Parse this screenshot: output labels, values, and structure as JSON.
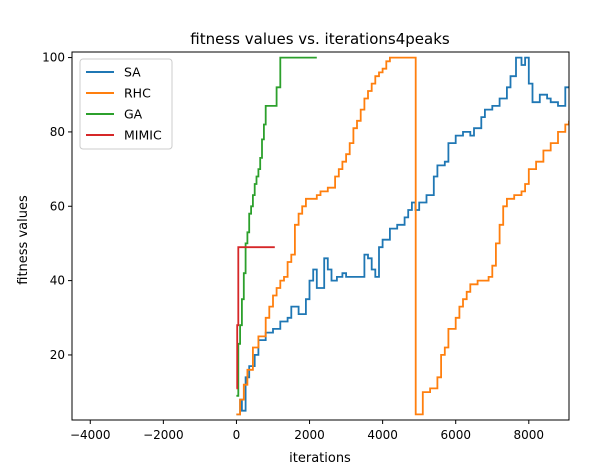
{
  "chart_data": {
    "type": "line",
    "title": "fitness values vs. iterations4peaks",
    "xlabel": "iterations",
    "ylabel": "fitness values",
    "xlim": [
      -4500,
      9100
    ],
    "ylim": [
      2.5,
      101.5
    ],
    "xticks": [
      -4000,
      -2000,
      0,
      2000,
      4000,
      6000,
      8000
    ],
    "yticks": [
      20,
      40,
      60,
      80,
      100
    ],
    "grid": false,
    "legend_position": "top-left",
    "series": [
      {
        "name": "SA",
        "color": "#1f77b4",
        "x": [
          0,
          100,
          150,
          250,
          350,
          500,
          600,
          800,
          1000,
          1200,
          1400,
          1500,
          1700,
          1900,
          2000,
          2100,
          2200,
          2400,
          2500,
          2600,
          2750,
          2900,
          3000,
          3200,
          3400,
          3500,
          3600,
          3700,
          3800,
          3900,
          4000,
          4200,
          4400,
          4600,
          4700,
          4800,
          4900,
          5000,
          5200,
          5400,
          5500,
          5700,
          5800,
          6000,
          6200,
          6400,
          6500,
          6700,
          6800,
          7000,
          7200,
          7400,
          7500,
          7650,
          7800,
          7900,
          8000,
          8100,
          8300,
          8500,
          8600,
          8800,
          9000,
          9100
        ],
        "y": [
          4,
          8,
          5,
          14,
          17,
          20,
          24,
          26,
          27,
          29,
          30,
          33,
          31,
          35,
          40,
          43,
          38,
          46,
          43,
          40,
          41,
          42,
          41,
          41,
          41,
          47,
          46,
          43,
          41,
          49,
          51,
          54,
          55,
          57,
          59,
          61,
          59,
          61,
          63,
          68,
          71,
          72,
          77,
          79,
          80,
          79,
          81,
          84,
          86,
          87,
          89,
          92,
          95,
          100,
          98,
          100,
          93,
          88,
          90,
          89,
          88,
          87,
          92,
          92
        ]
      },
      {
        "name": "RHC",
        "color": "#ff7f0e",
        "x": [
          0,
          100,
          200,
          300,
          450,
          600,
          800,
          900,
          1000,
          1100,
          1200,
          1300,
          1400,
          1500,
          1600,
          1700,
          1800,
          1900,
          2000,
          2100,
          2200,
          2300,
          2500,
          2700,
          2800,
          2900,
          3000,
          3100,
          3200,
          3300,
          3400,
          3500,
          3600,
          3700,
          3800,
          3900,
          4000,
          4100,
          4200,
          4400,
          4600,
          4800,
          4900,
          4905,
          5000,
          5100,
          5300,
          5500,
          5600,
          5700,
          5800,
          6000,
          6100,
          6200,
          6300,
          6400,
          6600,
          6800,
          6900,
          7000,
          7100,
          7200,
          7300,
          7400,
          7600,
          7800,
          7900,
          8000,
          8200,
          8400,
          8600,
          8800,
          9000,
          9100
        ],
        "y": [
          4,
          8,
          12,
          16,
          22,
          25,
          30,
          33,
          36,
          38,
          40,
          41,
          45,
          47,
          55,
          58,
          60,
          62,
          62,
          62,
          63,
          64,
          65,
          68,
          70,
          72,
          74,
          77,
          81,
          83,
          86,
          89,
          91,
          93,
          95,
          96,
          97,
          99,
          100,
          100,
          100,
          100,
          100,
          4,
          4,
          10,
          11,
          14,
          20,
          22,
          27,
          30,
          33,
          35,
          37,
          39,
          40,
          40,
          41,
          44,
          50,
          55,
          60,
          62,
          63,
          64,
          66,
          70,
          72,
          75,
          77,
          80,
          82,
          83
        ]
      },
      {
        "name": "GA",
        "color": "#2ca02c",
        "x": [
          0,
          50,
          100,
          150,
          200,
          250,
          300,
          350,
          400,
          450,
          500,
          550,
          600,
          650,
          700,
          750,
          800,
          850,
          900,
          950,
          1000,
          1100,
          1200,
          1300,
          2200
        ],
        "y": [
          9,
          23,
          28,
          35,
          42,
          50,
          53,
          58,
          60,
          63,
          66,
          68,
          70,
          73,
          78,
          82,
          87,
          87,
          87,
          87,
          87,
          92,
          100,
          100,
          100
        ]
      },
      {
        "name": "MIMIC",
        "color": "#d62728",
        "x": [
          0,
          20,
          50,
          100,
          200,
          400,
          600,
          800,
          1050
        ],
        "y": [
          11,
          28,
          49,
          49,
          49,
          49,
          49,
          49,
          49
        ]
      }
    ]
  }
}
